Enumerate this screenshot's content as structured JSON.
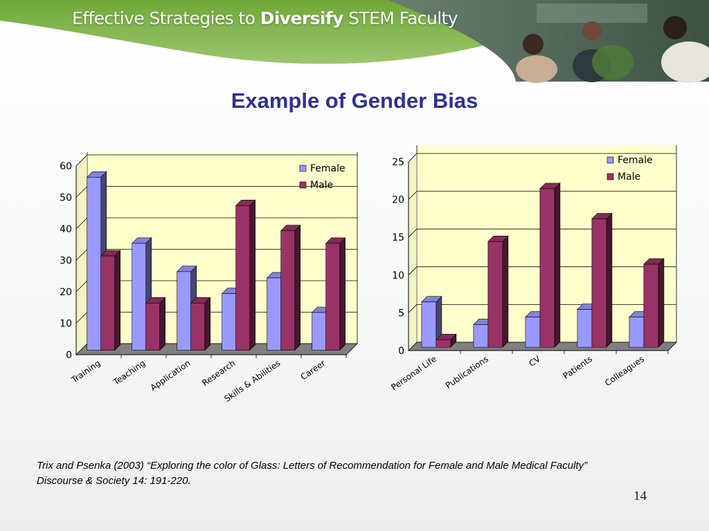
{
  "header": {
    "title_part1": "Effective Strategies to ",
    "title_part2": "Diversify",
    "title_part3": " STEM Faculty"
  },
  "slide": {
    "title": "Example of Gender Bias",
    "citation_line1": "Trix and Psenka (2003) “Exploring  the color of Glass: Letters of Recommendation for Female and Male Medical Faculty”",
    "citation_line2": "Discourse & Society 14: 191-220.",
    "page_number": "14"
  },
  "colors": {
    "female": "#9999ff",
    "male": "#993366",
    "plot_background": "#ffffcc",
    "banner_green": "#6aa42f",
    "title_blue": "#2e3192"
  },
  "chart_data": [
    {
      "type": "bar",
      "style": "3d-clustered-column",
      "categories": [
        "Training",
        "Teaching",
        "Application",
        "Research",
        "Skills & Abilities",
        "Career"
      ],
      "series": [
        {
          "name": "Female",
          "values": [
            55,
            34,
            25,
            18,
            23,
            12
          ]
        },
        {
          "name": "Male",
          "values": [
            30,
            15,
            15,
            46,
            38,
            34
          ]
        }
      ],
      "ylim": [
        0,
        60
      ],
      "yticks": [
        0,
        10,
        20,
        30,
        40,
        50,
        60
      ],
      "grid": true,
      "legend": "top-right",
      "title": "",
      "xlabel": "",
      "ylabel": ""
    },
    {
      "type": "bar",
      "style": "3d-clustered-column",
      "categories": [
        "Personal Life",
        "Publications",
        "CV",
        "Patients",
        "Colleagues"
      ],
      "series": [
        {
          "name": "Female",
          "values": [
            6,
            3,
            4,
            5,
            4
          ]
        },
        {
          "name": "Male",
          "values": [
            1,
            14,
            21,
            17,
            11
          ]
        }
      ],
      "ylim": [
        0,
        25
      ],
      "yticks": [
        0,
        5,
        10,
        15,
        20,
        25
      ],
      "grid": true,
      "legend": "top-right",
      "title": "",
      "xlabel": "",
      "ylabel": ""
    }
  ]
}
